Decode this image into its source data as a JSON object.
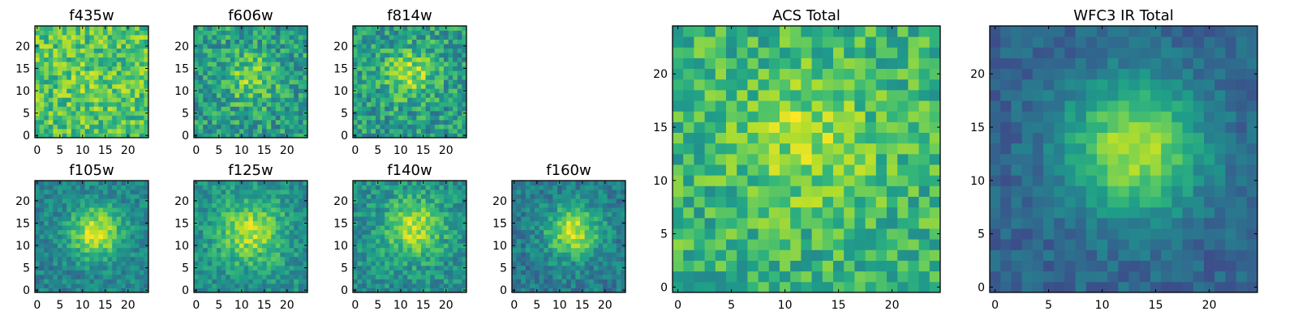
{
  "chart_data": {
    "type": "heatmap",
    "colormap": "viridis",
    "grid_size": 25,
    "panels": [
      {
        "id": "f435w",
        "title": "f435w",
        "xticks": [
          0,
          5,
          10,
          15,
          20
        ],
        "yticks": [
          0,
          5,
          10,
          15,
          20
        ],
        "peak": [
          12,
          12
        ],
        "amp": 0.05,
        "sigma": 4,
        "base": 0.72,
        "noise": 0.2,
        "seed": 11
      },
      {
        "id": "f606w",
        "title": "f606w",
        "xticks": [
          0,
          5,
          10,
          15,
          20
        ],
        "yticks": [
          0,
          5,
          10,
          15,
          20
        ],
        "peak": [
          12,
          13
        ],
        "amp": 0.25,
        "sigma": 4,
        "base": 0.55,
        "noise": 0.2,
        "seed": 23
      },
      {
        "id": "f814w",
        "title": "f814w",
        "xticks": [
          0,
          5,
          10,
          15,
          20
        ],
        "yticks": [
          0,
          5,
          10,
          15,
          20
        ],
        "peak": [
          12,
          14
        ],
        "amp": 0.3,
        "sigma": 4,
        "base": 0.55,
        "noise": 0.2,
        "seed": 37
      },
      {
        "id": "f105w",
        "title": "f105w",
        "xticks": [
          0,
          5,
          10,
          15,
          20
        ],
        "yticks": [
          0,
          5,
          10,
          15,
          20
        ],
        "peak": [
          13,
          13
        ],
        "amp": 0.5,
        "sigma": 4,
        "base": 0.45,
        "noise": 0.13,
        "seed": 41
      },
      {
        "id": "f125w",
        "title": "f125w",
        "xticks": [
          0,
          5,
          10,
          15,
          20
        ],
        "yticks": [
          0,
          5,
          10,
          15,
          20
        ],
        "peak": [
          12,
          13
        ],
        "amp": 0.38,
        "sigma": 5,
        "base": 0.5,
        "noise": 0.14,
        "seed": 53
      },
      {
        "id": "f140w",
        "title": "f140w",
        "xticks": [
          0,
          5,
          10,
          15,
          20
        ],
        "yticks": [
          0,
          5,
          10,
          15,
          20
        ],
        "peak": [
          13,
          14
        ],
        "amp": 0.4,
        "sigma": 4.5,
        "base": 0.5,
        "noise": 0.15,
        "seed": 67
      },
      {
        "id": "f160w",
        "title": "f160w",
        "xticks": [
          0,
          5,
          10,
          15,
          20
        ],
        "yticks": [
          0,
          5,
          10,
          15,
          20
        ],
        "peak": [
          13,
          13
        ],
        "amp": 0.5,
        "sigma": 4,
        "base": 0.42,
        "noise": 0.14,
        "seed": 79
      },
      {
        "id": "acs-total",
        "title": "ACS Total",
        "xticks": [
          0,
          5,
          10,
          15,
          20
        ],
        "yticks": [
          0,
          5,
          10,
          15,
          20
        ],
        "peak": [
          12,
          14
        ],
        "amp": 0.2,
        "sigma": 4.5,
        "base": 0.65,
        "noise": 0.18,
        "seed": 97
      },
      {
        "id": "wfc3-ir-total",
        "title": "WFC3 IR Total",
        "xticks": [
          0,
          5,
          10,
          15,
          20
        ],
        "yticks": [
          0,
          5,
          10,
          15,
          20
        ],
        "peak": [
          13,
          13
        ],
        "amp": 0.55,
        "sigma": 4.5,
        "base": 0.32,
        "noise": 0.09,
        "seed": 113
      }
    ]
  }
}
